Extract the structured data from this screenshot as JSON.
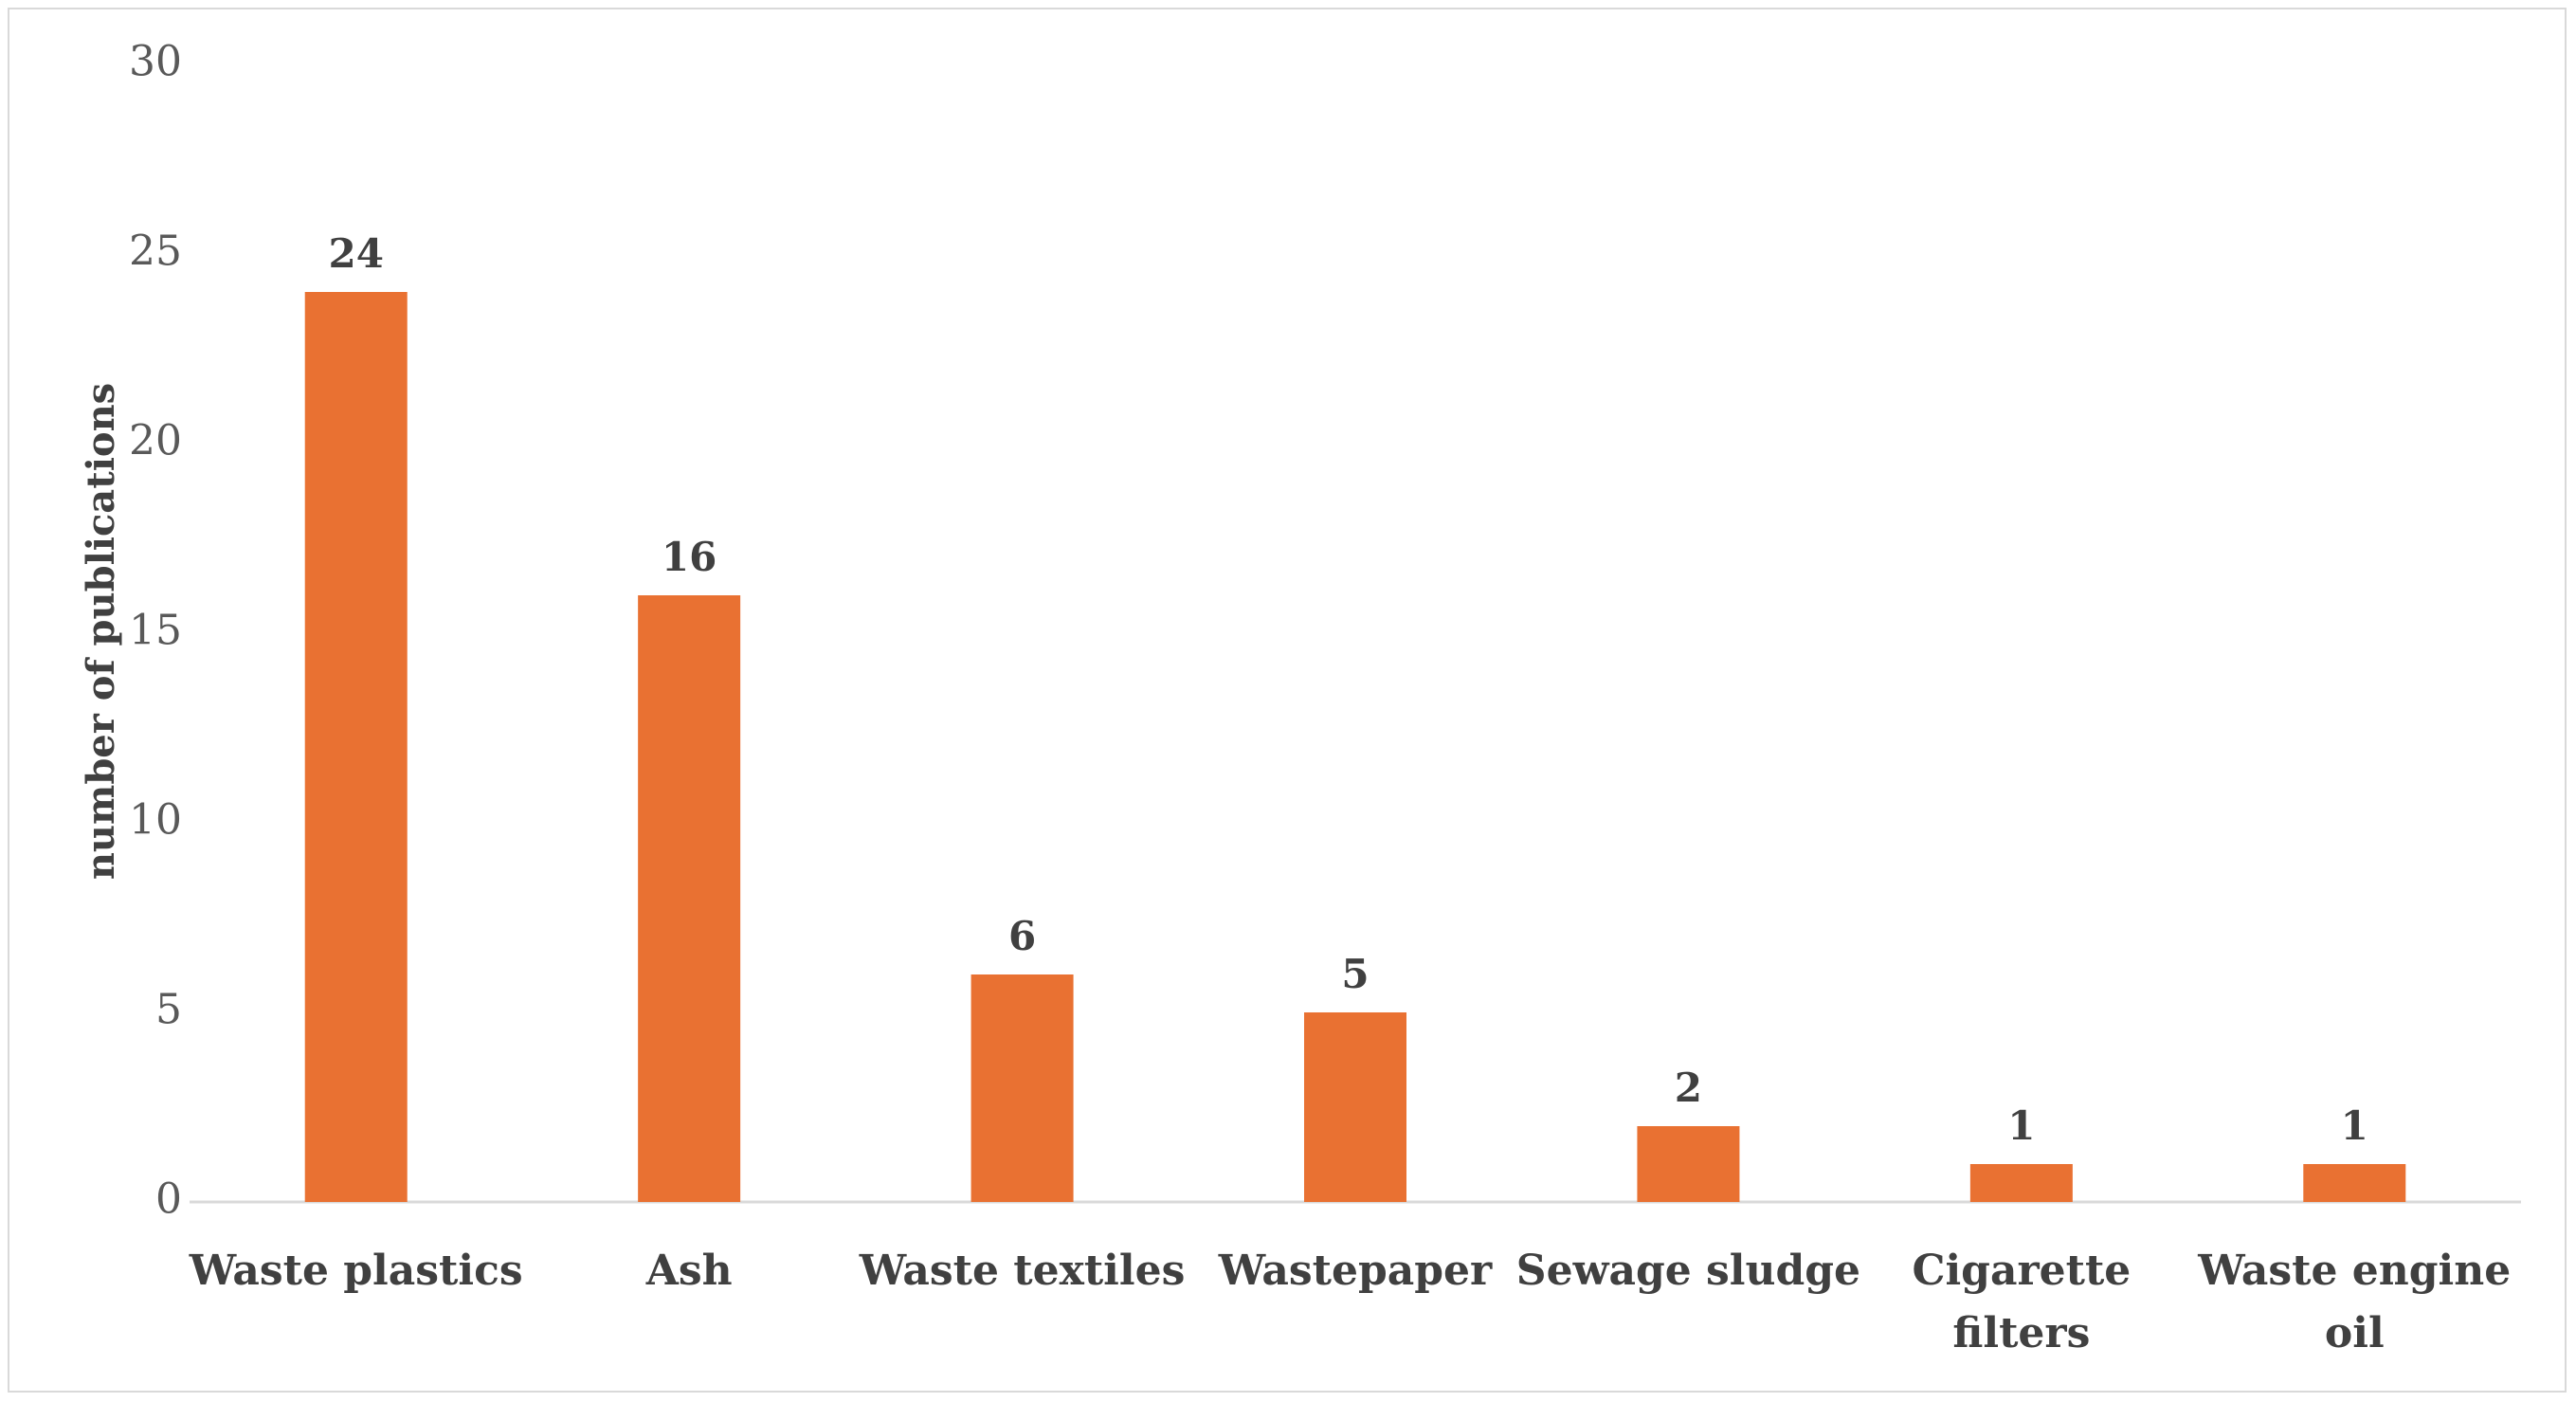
{
  "chart_data": {
    "type": "bar",
    "title": "",
    "xlabel": "",
    "ylabel": "number of publications",
    "ylim": [
      0,
      30
    ],
    "yticks": [
      0,
      5,
      10,
      15,
      20,
      25,
      30
    ],
    "grid": false,
    "legend": "none",
    "bar_color": "#E97132",
    "categories": [
      [
        "Waste plastics"
      ],
      [
        "Ash"
      ],
      [
        "Waste textiles"
      ],
      [
        "Wastepaper"
      ],
      [
        "Sewage sludge"
      ],
      [
        "Cigarette",
        "filters"
      ],
      [
        "Waste engine",
        "oil"
      ]
    ],
    "values": [
      24,
      16,
      6,
      5,
      2,
      1,
      1
    ]
  }
}
